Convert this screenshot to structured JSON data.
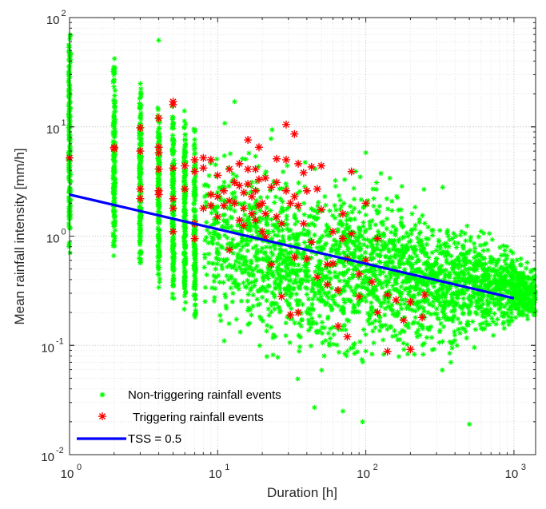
{
  "chart_data": {
    "type": "scatter",
    "title": "",
    "xlabel": "Duration [h]",
    "ylabel": "Mean rainfall intensity [mm/h]",
    "xscale": "log",
    "yscale": "log",
    "xlim": [
      1,
      1400
    ],
    "ylim": [
      0.01,
      100
    ],
    "grid": "major and minor, dotted",
    "x_ticks": [
      {
        "value": 1,
        "base": "10",
        "exp": "0"
      },
      {
        "value": 10,
        "base": "10",
        "exp": "1"
      },
      {
        "value": 100,
        "base": "10",
        "exp": "2"
      },
      {
        "value": 1000,
        "base": "10",
        "exp": "3"
      }
    ],
    "y_ticks": [
      {
        "value": 0.01,
        "base": "10",
        "exp": "-2"
      },
      {
        "value": 0.1,
        "base": "10",
        "exp": "-1"
      },
      {
        "value": 1,
        "base": "10",
        "exp": "0"
      },
      {
        "value": 10,
        "base": "10",
        "exp": "1"
      },
      {
        "value": 100,
        "base": "10",
        "exp": "2"
      }
    ],
    "legend_position": "bottom-left",
    "series": [
      {
        "name": "Non-triggering rainfall events",
        "kind": "scatter",
        "marker": "asterisk",
        "color": "#00ff00",
        "discrete_columns": [
          {
            "x": 1,
            "y_range": [
              0.7,
              95
            ]
          },
          {
            "x": 2,
            "y_range": [
              0.55,
              45
            ]
          },
          {
            "x": 3,
            "y_range": [
              0.4,
              26
            ]
          },
          {
            "x": 4,
            "y_range": [
              0.3,
              18
            ]
          },
          {
            "x": 5,
            "y_range": [
              0.25,
              17
            ]
          },
          {
            "x": 6,
            "y_range": [
              0.2,
              14
            ]
          },
          {
            "x": 7,
            "y_range": [
              0.15,
              10
            ]
          }
        ],
        "cloud_envelope": [
          {
            "x": 8,
            "y_low": 0.12,
            "y_high": 9
          },
          {
            "x": 10,
            "y_low": 0.08,
            "y_high": 12
          },
          {
            "x": 20,
            "y_low": 0.05,
            "y_high": 10
          },
          {
            "x": 50,
            "y_low": 0.03,
            "y_high": 8
          },
          {
            "x": 100,
            "y_low": 0.04,
            "y_high": 6
          },
          {
            "x": 300,
            "y_low": 0.05,
            "y_high": 3
          },
          {
            "x": 1000,
            "y_low": 0.12,
            "y_high": 0.9
          },
          {
            "x": 1400,
            "y_low": 0.15,
            "y_high": 0.6
          }
        ],
        "notable_points": [
          {
            "x": 4,
            "y": 62
          },
          {
            "x": 13,
            "y": 17
          },
          {
            "x": 100,
            "y": 5.8
          },
          {
            "x": 330,
            "y": 2.8
          },
          {
            "x": 500,
            "y": 0.019
          },
          {
            "x": 95,
            "y": 0.02
          },
          {
            "x": 70,
            "y": 0.025
          },
          {
            "x": 45,
            "y": 0.027
          }
        ]
      },
      {
        "name": "Triggering rainfall events",
        "kind": "scatter",
        "marker": "asterisk",
        "color": "#ff0000",
        "points": [
          {
            "x": 1,
            "y": 5.2
          },
          {
            "x": 2,
            "y": 6.5
          },
          {
            "x": 2,
            "y": 6.3
          },
          {
            "x": 3,
            "y": 9.8
          },
          {
            "x": 3,
            "y": 6.0
          },
          {
            "x": 3,
            "y": 2.7
          },
          {
            "x": 3,
            "y": 2.2
          },
          {
            "x": 4,
            "y": 12
          },
          {
            "x": 4,
            "y": 6.5
          },
          {
            "x": 4,
            "y": 5.8
          },
          {
            "x": 4,
            "y": 4.1
          },
          {
            "x": 4,
            "y": 2.6
          },
          {
            "x": 4,
            "y": 2.4
          },
          {
            "x": 5,
            "y": 17
          },
          {
            "x": 5,
            "y": 16
          },
          {
            "x": 5,
            "y": 4.2
          },
          {
            "x": 5,
            "y": 2.2
          },
          {
            "x": 5,
            "y": 1.8
          },
          {
            "x": 5,
            "y": 1.1
          },
          {
            "x": 6,
            "y": 4.4
          },
          {
            "x": 6,
            "y": 2.7
          },
          {
            "x": 7,
            "y": 5.0
          },
          {
            "x": 7,
            "y": 3.9
          },
          {
            "x": 7,
            "y": 1.3
          },
          {
            "x": 7,
            "y": 0.95
          },
          {
            "x": 8,
            "y": 5.2
          },
          {
            "x": 8,
            "y": 4.2
          },
          {
            "x": 8,
            "y": 1.8
          },
          {
            "x": 9,
            "y": 5.0
          },
          {
            "x": 9,
            "y": 2.4
          },
          {
            "x": 9,
            "y": 1.9
          },
          {
            "x": 10,
            "y": 3.6
          },
          {
            "x": 10,
            "y": 2.3
          },
          {
            "x": 10,
            "y": 1.5
          },
          {
            "x": 11,
            "y": 2.6
          },
          {
            "x": 11,
            "y": 1.9
          },
          {
            "x": 12,
            "y": 4.1
          },
          {
            "x": 12,
            "y": 2.1
          },
          {
            "x": 12,
            "y": 0.75
          },
          {
            "x": 13,
            "y": 3.1
          },
          {
            "x": 13,
            "y": 2.0
          },
          {
            "x": 14,
            "y": 4.6
          },
          {
            "x": 14,
            "y": 2.9
          },
          {
            "x": 14,
            "y": 1.4
          },
          {
            "x": 15,
            "y": 2.5
          },
          {
            "x": 15,
            "y": 1.8
          },
          {
            "x": 15,
            "y": 1.25
          },
          {
            "x": 16,
            "y": 7.6
          },
          {
            "x": 16,
            "y": 4.1
          },
          {
            "x": 16,
            "y": 3.0
          },
          {
            "x": 17,
            "y": 2.3
          },
          {
            "x": 17,
            "y": 1.6
          },
          {
            "x": 18,
            "y": 4.1
          },
          {
            "x": 18,
            "y": 2.6
          },
          {
            "x": 18,
            "y": 1.4
          },
          {
            "x": 19,
            "y": 6.5
          },
          {
            "x": 19,
            "y": 3.3
          },
          {
            "x": 19,
            "y": 1.9
          },
          {
            "x": 20,
            "y": 2.0
          },
          {
            "x": 20,
            "y": 1.1
          },
          {
            "x": 21,
            "y": 3.4
          },
          {
            "x": 21,
            "y": 1.6
          },
          {
            "x": 21,
            "y": 0.98
          },
          {
            "x": 23,
            "y": 2.8
          },
          {
            "x": 23,
            "y": 0.55
          },
          {
            "x": 25,
            "y": 5.1
          },
          {
            "x": 25,
            "y": 3.1
          },
          {
            "x": 25,
            "y": 1.5
          },
          {
            "x": 27,
            "y": 1.3
          },
          {
            "x": 27,
            "y": 0.28
          },
          {
            "x": 29,
            "y": 10.5
          },
          {
            "x": 29,
            "y": 5.0
          },
          {
            "x": 29,
            "y": 2.6
          },
          {
            "x": 31,
            "y": 2.0
          },
          {
            "x": 31,
            "y": 0.19
          },
          {
            "x": 33,
            "y": 8.6
          },
          {
            "x": 33,
            "y": 2.3
          },
          {
            "x": 33,
            "y": 0.64
          },
          {
            "x": 35,
            "y": 4.6
          },
          {
            "x": 35,
            "y": 1.9
          },
          {
            "x": 35,
            "y": 0.2
          },
          {
            "x": 38,
            "y": 3.8
          },
          {
            "x": 38,
            "y": 1.3
          },
          {
            "x": 40,
            "y": 2.6
          },
          {
            "x": 40,
            "y": 0.62
          },
          {
            "x": 43,
            "y": 4.3
          },
          {
            "x": 43,
            "y": 0.88
          },
          {
            "x": 47,
            "y": 2.7
          },
          {
            "x": 47,
            "y": 0.42
          },
          {
            "x": 50,
            "y": 4.4
          },
          {
            "x": 50,
            "y": 1.75
          },
          {
            "x": 55,
            "y": 0.55
          },
          {
            "x": 55,
            "y": 0.36
          },
          {
            "x": 60,
            "y": 1.1
          },
          {
            "x": 60,
            "y": 0.56
          },
          {
            "x": 65,
            "y": 0.32
          },
          {
            "x": 65,
            "y": 0.15
          },
          {
            "x": 70,
            "y": 1.6
          },
          {
            "x": 70,
            "y": 0.95
          },
          {
            "x": 75,
            "y": 0.62
          },
          {
            "x": 75,
            "y": 0.12
          },
          {
            "x": 80,
            "y": 3.9
          },
          {
            "x": 80,
            "y": 1.05
          },
          {
            "x": 90,
            "y": 0.45
          },
          {
            "x": 90,
            "y": 0.28
          },
          {
            "x": 100,
            "y": 2.0
          },
          {
            "x": 100,
            "y": 0.6
          },
          {
            "x": 110,
            "y": 0.38
          },
          {
            "x": 120,
            "y": 0.95
          },
          {
            "x": 120,
            "y": 0.2
          },
          {
            "x": 140,
            "y": 0.29
          },
          {
            "x": 140,
            "y": 0.088
          },
          {
            "x": 160,
            "y": 0.26
          },
          {
            "x": 180,
            "y": 0.17
          },
          {
            "x": 200,
            "y": 0.25
          },
          {
            "x": 200,
            "y": 0.092
          },
          {
            "x": 240,
            "y": 0.18
          },
          {
            "x": 250,
            "y": 0.29
          }
        ]
      },
      {
        "name": "TSS = 0.5",
        "kind": "line",
        "color": "#0000ff",
        "x": [
          1,
          1000
        ],
        "y": [
          2.4,
          0.27
        ]
      }
    ]
  }
}
